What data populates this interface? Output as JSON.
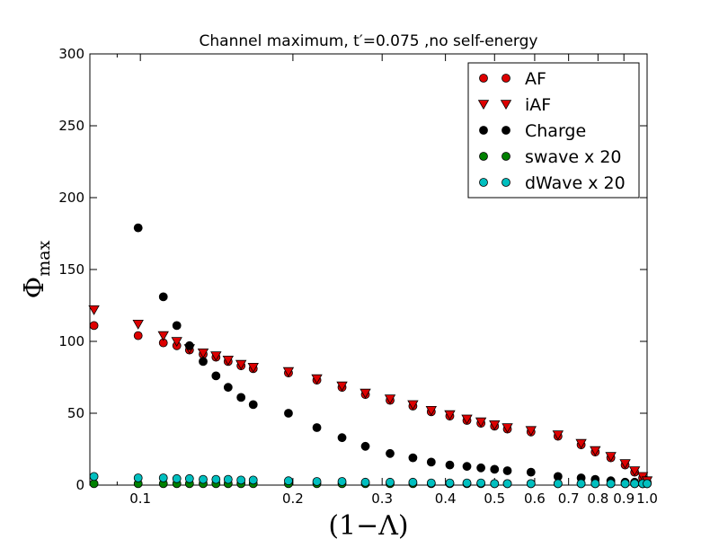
{
  "chart_data": {
    "type": "scatter",
    "title": "Channel maximum, t′=0.075 ,no self-energy",
    "xlabel": "(1−Λ)",
    "ylabel": "Φ_max",
    "ylabel_main": "Φ",
    "ylabel_sub": "max",
    "x_scale": "log",
    "xlim": [
      0.0795,
      1.0
    ],
    "ylim": [
      0,
      300
    ],
    "grid": false,
    "legend_position": "top-right",
    "x_ticks": [
      0.1,
      0.2,
      0.3,
      0.4,
      0.5,
      0.6,
      0.7,
      0.8,
      0.9,
      1.0
    ],
    "x_tick_labels": [
      "0.1",
      "0.2",
      "0.3",
      "0.4",
      "0.5",
      "0.6",
      "0.7",
      "0.8",
      "0.9",
      "1.0"
    ],
    "y_ticks": [
      0,
      50,
      100,
      150,
      200,
      250,
      300
    ],
    "y_tick_labels": [
      "0",
      "50",
      "100",
      "150",
      "200",
      "250",
      "300"
    ],
    "series": [
      {
        "name": "AF",
        "marker": "circle",
        "color": "#dd0000",
        "x": [
          0.081,
          0.099,
          0.111,
          0.118,
          0.125,
          0.133,
          0.141,
          0.149,
          0.158,
          0.167,
          0.196,
          0.223,
          0.25,
          0.278,
          0.311,
          0.345,
          0.375,
          0.408,
          0.441,
          0.47,
          0.5,
          0.53,
          0.59,
          0.667,
          0.741,
          0.79,
          0.848,
          0.905,
          0.945,
          0.98,
          1.0
        ],
        "y": [
          111,
          104,
          99,
          97,
          94,
          91,
          89,
          86,
          83,
          81,
          78,
          73,
          68,
          63,
          59,
          55,
          51,
          48,
          45,
          43,
          41,
          39,
          37,
          34,
          28,
          23,
          19,
          14,
          9,
          5,
          2
        ]
      },
      {
        "name": "iAF",
        "marker": "triangle-down",
        "color": "#dd0000",
        "x": [
          0.081,
          0.099,
          0.111,
          0.118,
          0.125,
          0.133,
          0.141,
          0.149,
          0.158,
          0.167,
          0.196,
          0.223,
          0.25,
          0.278,
          0.311,
          0.345,
          0.375,
          0.408,
          0.441,
          0.47,
          0.5,
          0.53,
          0.59,
          0.667,
          0.741,
          0.79,
          0.848,
          0.905,
          0.945,
          0.98,
          1.0
        ],
        "y": [
          122,
          112,
          104,
          100,
          95,
          92,
          90,
          87,
          84,
          82,
          79,
          74,
          69,
          64,
          60,
          56,
          52,
          49,
          46,
          44,
          42,
          40,
          38,
          35,
          29,
          24,
          20,
          15,
          10,
          6,
          3
        ]
      },
      {
        "name": "Charge",
        "marker": "circle",
        "color": "#000000",
        "x": [
          0.099,
          0.111,
          0.118,
          0.125,
          0.133,
          0.141,
          0.149,
          0.158,
          0.167,
          0.196,
          0.223,
          0.25,
          0.278,
          0.311,
          0.345,
          0.375,
          0.408,
          0.441,
          0.47,
          0.5,
          0.53,
          0.59,
          0.667,
          0.741,
          0.79,
          0.848,
          0.905,
          0.945,
          0.98,
          1.0
        ],
        "y": [
          179,
          131,
          111,
          97,
          86,
          76,
          68,
          61,
          56,
          50,
          40,
          33,
          27,
          22,
          19,
          16,
          14,
          13,
          12,
          11,
          10,
          9,
          6,
          5,
          4,
          3,
          2,
          2,
          1,
          1
        ]
      },
      {
        "name": "swave x 20",
        "marker": "circle",
        "color": "#008000",
        "x": [
          0.081,
          0.099,
          0.111,
          0.118,
          0.125,
          0.133,
          0.141,
          0.149,
          0.158,
          0.167,
          0.196,
          0.223,
          0.25,
          0.278,
          0.311,
          0.345,
          0.375,
          0.408,
          0.441,
          0.47,
          0.5,
          0.53,
          0.59,
          0.667,
          0.741,
          0.79,
          0.848,
          0.905,
          0.945,
          0.98,
          1.0
        ],
        "y": [
          1,
          1,
          1,
          1,
          1,
          1,
          1,
          1,
          1,
          1,
          1,
          1,
          1,
          1,
          1,
          1,
          1,
          1,
          1,
          1,
          1,
          1,
          1,
          1,
          1,
          1,
          1,
          1,
          1,
          1,
          1
        ]
      },
      {
        "name": "dWave x 20",
        "marker": "circle",
        "color": "#00bfbf",
        "x": [
          0.081,
          0.099,
          0.111,
          0.118,
          0.125,
          0.133,
          0.141,
          0.149,
          0.158,
          0.167,
          0.196,
          0.223,
          0.25,
          0.278,
          0.311,
          0.345,
          0.375,
          0.408,
          0.441,
          0.47,
          0.5,
          0.53,
          0.59,
          0.667,
          0.741,
          0.79,
          0.848,
          0.905,
          0.945,
          0.98,
          1.0
        ],
        "y": [
          6,
          5,
          5,
          4.5,
          4.5,
          4,
          4,
          4,
          3.5,
          3.5,
          3,
          2.5,
          2.5,
          2,
          2,
          2,
          1.5,
          1.5,
          1.5,
          1.5,
          1,
          1,
          1,
          1,
          1,
          1,
          1,
          1,
          1,
          1,
          1
        ]
      }
    ]
  }
}
